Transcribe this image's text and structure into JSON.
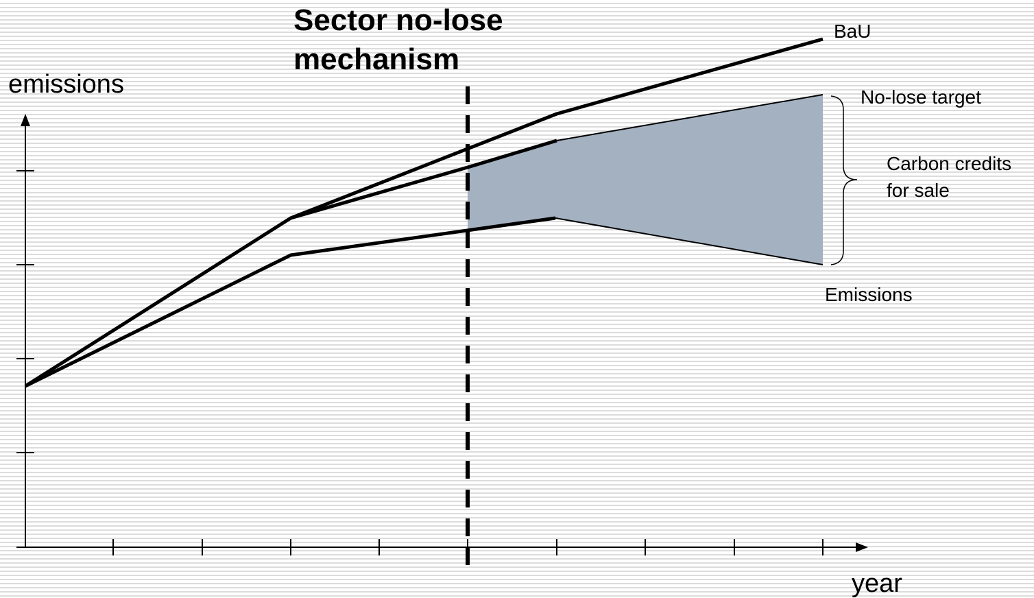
{
  "title": {
    "line1": "Sector no-lose",
    "line2": "mechanism"
  },
  "axes": {
    "y_label": "emissions",
    "x_label": "year"
  },
  "lines": {
    "bau": "BaU",
    "no_lose_target": "No-lose target",
    "emissions": "Emissions"
  },
  "annotation": {
    "line1": "Carbon credits",
    "line2": "for sale"
  },
  "colors": {
    "credits_fill": "#a3b1c1",
    "lines": "#000000"
  }
}
